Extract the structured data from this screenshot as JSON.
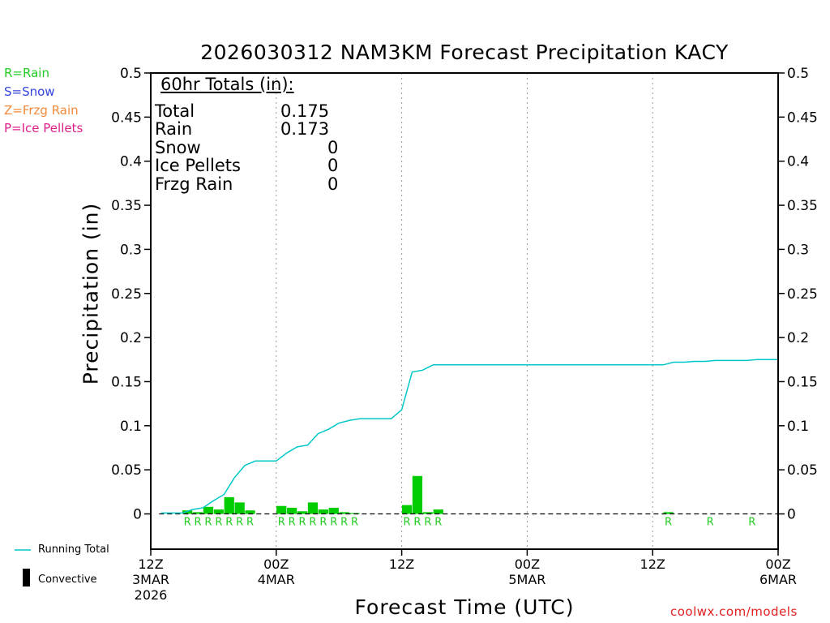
{
  "chart_data": {
    "type": "bar",
    "title": "2026030312 NAM3KM Forecast Precipitation KACY",
    "ylabel": "Precipitation (in)",
    "xlabel": "Forecast Time (UTC)",
    "ylim": [
      -0.04,
      0.5
    ],
    "xlim_hours": [
      0,
      60
    ],
    "y_ticks": [
      "0.5",
      "0.45",
      "0.4",
      "0.35",
      "0.3",
      "0.25",
      "0.2",
      "0.15",
      "0.1",
      "0.05",
      "0"
    ],
    "x_ticks": [
      {
        "hour": 0,
        "lines": [
          "12Z",
          "3MAR",
          "2026"
        ]
      },
      {
        "hour": 12,
        "lines": [
          "00Z",
          "4MAR"
        ]
      },
      {
        "hour": 24,
        "lines": [
          "12Z"
        ]
      },
      {
        "hour": 36,
        "lines": [
          "00Z",
          "5MAR"
        ]
      },
      {
        "hour": 48,
        "lines": [
          "12Z"
        ]
      },
      {
        "hour": 60,
        "lines": [
          "00Z",
          "6MAR"
        ]
      }
    ],
    "grid": "dotted vertical at 12-hour ticks",
    "hourly_precip": {
      "color": "#00cc00",
      "hours": [
        4,
        5,
        6,
        7,
        8,
        9,
        10,
        13,
        14,
        15,
        16,
        17,
        18,
        19,
        20,
        25,
        26,
        27,
        28,
        50
      ],
      "values": [
        0.004,
        0.002,
        0.008,
        0.005,
        0.019,
        0.013,
        0.004,
        0.009,
        0.007,
        0.003,
        0.013,
        0.005,
        0.007,
        0.002,
        0.001,
        0.01,
        0.043,
        0.002,
        0.005,
        0.002
      ]
    },
    "type_markers": [
      {
        "hour": 4,
        "label": "R"
      },
      {
        "hour": 5,
        "label": "R"
      },
      {
        "hour": 6,
        "label": "R"
      },
      {
        "hour": 7,
        "label": "R"
      },
      {
        "hour": 8,
        "label": "R"
      },
      {
        "hour": 9,
        "label": "R"
      },
      {
        "hour": 10,
        "label": "R"
      },
      {
        "hour": 13,
        "label": "R"
      },
      {
        "hour": 14,
        "label": "R"
      },
      {
        "hour": 15,
        "label": "R"
      },
      {
        "hour": 16,
        "label": "R"
      },
      {
        "hour": 17,
        "label": "R"
      },
      {
        "hour": 18,
        "label": "R"
      },
      {
        "hour": 19,
        "label": "R"
      },
      {
        "hour": 20,
        "label": "R"
      },
      {
        "hour": 25,
        "label": "R"
      },
      {
        "hour": 26,
        "label": "R"
      },
      {
        "hour": 27,
        "label": "R"
      },
      {
        "hour": 28,
        "label": "R"
      },
      {
        "hour": 50,
        "label": "R"
      },
      {
        "hour": 54,
        "label": "R"
      },
      {
        "hour": 58,
        "label": "R"
      }
    ],
    "running_total": {
      "name": "Running Total",
      "color": "#00c8c8",
      "points": [
        [
          1,
          0.001
        ],
        [
          2,
          0.001
        ],
        [
          3,
          0.001
        ],
        [
          4,
          0.005
        ],
        [
          5,
          0.007
        ],
        [
          6,
          0.015
        ],
        [
          7,
          0.022
        ],
        [
          8,
          0.041
        ],
        [
          9,
          0.055
        ],
        [
          10,
          0.06
        ],
        [
          11,
          0.06
        ],
        [
          12,
          0.06
        ],
        [
          13,
          0.069
        ],
        [
          14,
          0.076
        ],
        [
          15,
          0.078
        ],
        [
          16,
          0.091
        ],
        [
          17,
          0.096
        ],
        [
          18,
          0.103
        ],
        [
          19,
          0.106
        ],
        [
          20,
          0.108
        ],
        [
          21,
          0.108
        ],
        [
          22,
          0.108
        ],
        [
          23,
          0.108
        ],
        [
          24,
          0.118
        ],
        [
          25,
          0.161
        ],
        [
          26,
          0.163
        ],
        [
          27,
          0.169
        ],
        [
          28,
          0.169
        ],
        [
          29,
          0.169
        ],
        [
          30,
          0.169
        ],
        [
          40,
          0.169
        ],
        [
          48,
          0.169
        ],
        [
          49,
          0.169
        ],
        [
          50,
          0.172
        ],
        [
          51,
          0.172
        ],
        [
          52,
          0.173
        ],
        [
          53,
          0.173
        ],
        [
          54,
          0.174
        ],
        [
          55,
          0.174
        ],
        [
          56,
          0.174
        ],
        [
          57,
          0.174
        ],
        [
          58,
          0.175
        ],
        [
          59,
          0.175
        ],
        [
          60,
          0.175
        ]
      ]
    }
  },
  "type_legend": [
    {
      "text": "R=Rain",
      "color": "#22cc22"
    },
    {
      "text": "S=Snow",
      "color": "#3344dd"
    },
    {
      "text": "Z=Frzg Rain",
      "color": "#f08a3a"
    },
    {
      "text": "P=Ice Pellets",
      "color": "#e0208a"
    }
  ],
  "totals_box": {
    "heading": "60hr Totals (in):",
    "rows": [
      {
        "label": "Total",
        "value": "0.175"
      },
      {
        "label": "Rain",
        "value": "0.173"
      },
      {
        "label": "Snow",
        "value": "0"
      },
      {
        "label": "Ice Pellets",
        "value": "0"
      },
      {
        "label": "Frzg Rain",
        "value": "0"
      }
    ]
  },
  "bottom_legend": {
    "running_total": "Running Total",
    "convective": "Convective"
  },
  "credit": "coolwx.com/models"
}
